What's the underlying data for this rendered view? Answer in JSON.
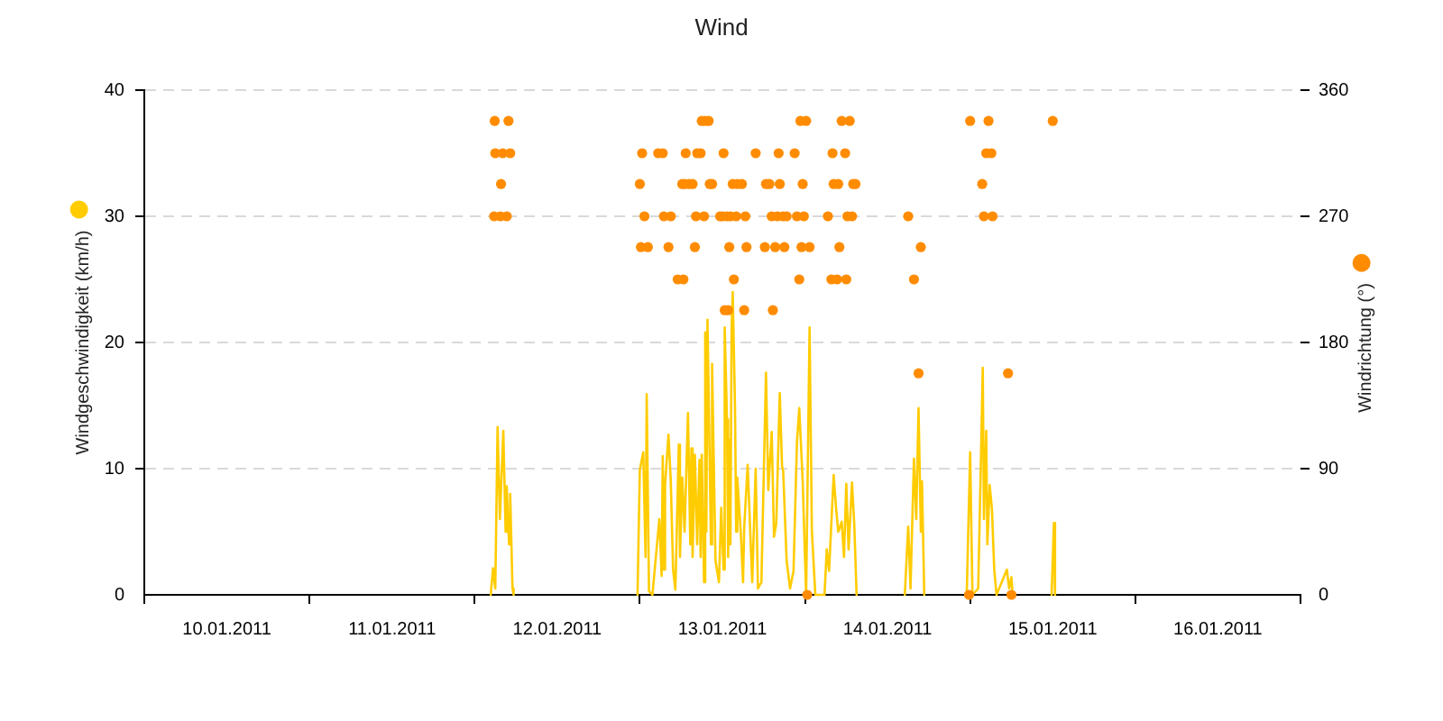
{
  "chart_data": {
    "type": "line",
    "title": "Wind",
    "ylabel": "Windgeschwindigkeit (km/h)",
    "y2label": "Windrichtung (°)",
    "xlim": [
      "2011-01-10",
      "2011-01-17"
    ],
    "xticks": [
      {
        "value": "2011-01-10",
        "label": null
      },
      {
        "value": "2011-01-10T12:00",
        "label": "10.01.2011"
      },
      {
        "value": "2011-01-11",
        "label": null
      },
      {
        "value": "2011-01-11T12:00",
        "label": "11.01.2011"
      },
      {
        "value": "2011-01-12",
        "label": null
      },
      {
        "value": "2011-01-12T12:00",
        "label": "12.01.2011"
      },
      {
        "value": "2011-01-13",
        "label": null
      },
      {
        "value": "2011-01-13T12:00",
        "label": "13.01.2011"
      },
      {
        "value": "2011-01-14",
        "label": null
      },
      {
        "value": "2011-01-14T12:00",
        "label": "14.01.2011"
      },
      {
        "value": "2011-01-15",
        "label": null
      },
      {
        "value": "2011-01-15T12:00",
        "label": "15.01.2011"
      },
      {
        "value": "2011-01-16",
        "label": null
      },
      {
        "value": "2011-01-16T12:00",
        "label": "16.01.2011"
      },
      {
        "value": "2011-01-17",
        "label": null
      }
    ],
    "ylim": [
      0,
      40
    ],
    "yticks": [
      0,
      10,
      20,
      30,
      40
    ],
    "y2lim": [
      0,
      360
    ],
    "y2ticks": [
      0,
      90,
      180,
      270,
      360
    ],
    "grid": "y",
    "series": [
      {
        "color": "#ffcc00",
        "marker": "none",
        "x": [
          "2011-01-12T02:20",
          "2011-01-12T02:40",
          "2011-01-12T03:00",
          "2011-01-12T03:20",
          "2011-01-12T03:40",
          "2011-01-12T04:10",
          "2011-01-12T04:30",
          "2011-01-12T04:40",
          "2011-01-12T05:00",
          "2011-01-12T05:10",
          "2011-01-12T05:30",
          "2011-01-12T05:40",
          "2011-01-12T12:00",
          "2011-01-12T23:40",
          "2011-01-13T00:00",
          "2011-01-13T00:30",
          "2011-01-13T00:50",
          "2011-01-13T01:00",
          "2011-01-13T01:20",
          "2011-01-13T01:50",
          "2011-01-13T02:50",
          "2011-01-13T03:10",
          "2011-01-13T03:20",
          "2011-01-13T03:30",
          "2011-01-13T03:40",
          "2011-01-13T04:10",
          "2011-01-13T04:30",
          "2011-01-13T04:50",
          "2011-01-13T05:10",
          "2011-01-13T05:40",
          "2011-01-13T05:50",
          "2011-01-13T06:10",
          "2011-01-13T06:30",
          "2011-01-13T07:00",
          "2011-01-13T07:20",
          "2011-01-13T07:30",
          "2011-01-13T07:40",
          "2011-01-13T08:00",
          "2011-01-13T08:20",
          "2011-01-13T08:40",
          "2011-01-13T08:50",
          "2011-01-13T09:00",
          "2011-01-13T09:20",
          "2011-01-13T09:30",
          "2011-01-13T09:40",
          "2011-01-13T09:50",
          "2011-01-13T10:10",
          "2011-01-13T10:20",
          "2011-01-13T10:30",
          "2011-01-13T11:00",
          "2011-01-13T11:30",
          "2011-01-13T11:50",
          "2011-01-13T12:10",
          "2011-01-13T12:20",
          "2011-01-13T12:40",
          "2011-01-13T12:50",
          "2011-01-13T13:00",
          "2011-01-13T13:10",
          "2011-01-13T13:20",
          "2011-01-13T13:30",
          "2011-01-13T13:50",
          "2011-01-13T14:00",
          "2011-01-13T14:10",
          "2011-01-13T14:40",
          "2011-01-13T15:00",
          "2011-01-13T15:10",
          "2011-01-13T15:40",
          "2011-01-13T16:20",
          "2011-01-13T16:50",
          "2011-01-13T17:10",
          "2011-01-13T17:40",
          "2011-01-13T18:20",
          "2011-01-13T18:40",
          "2011-01-13T19:10",
          "2011-01-13T19:30",
          "2011-01-13T19:50",
          "2011-01-13T20:20",
          "2011-01-13T20:40",
          "2011-01-13T20:50",
          "2011-01-13T21:20",
          "2011-01-13T21:50",
          "2011-01-13T22:20",
          "2011-01-13T22:50",
          "2011-01-13T23:10",
          "2011-01-13T23:40",
          "2011-01-14T00:10",
          "2011-01-14T00:40",
          "2011-01-14T01:00",
          "2011-01-14T01:30",
          "2011-01-14T02:50",
          "2011-01-14T03:10",
          "2011-01-14T03:30",
          "2011-01-14T04:10",
          "2011-01-14T04:30",
          "2011-01-14T04:50",
          "2011-01-14T05:20",
          "2011-01-14T05:40",
          "2011-01-14T06:00",
          "2011-01-14T06:20",
          "2011-01-14T06:50",
          "2011-01-14T07:10",
          "2011-01-14T07:30",
          "2011-01-14T11:00",
          "2011-01-14T14:30",
          "2011-01-14T15:00",
          "2011-01-14T15:20",
          "2011-01-14T15:50",
          "2011-01-14T16:10",
          "2011-01-14T16:30",
          "2011-01-14T16:50",
          "2011-01-14T17:00",
          "2011-01-14T17:20",
          "2011-01-14T20:00",
          "2011-01-14T23:30",
          "2011-01-15T00:00",
          "2011-01-15T00:20",
          "2011-01-15T01:10",
          "2011-01-15T01:30",
          "2011-01-15T01:50",
          "2011-01-15T02:00",
          "2011-01-15T02:20",
          "2011-01-15T02:30",
          "2011-01-15T02:50",
          "2011-01-15T03:10",
          "2011-01-15T03:30",
          "2011-01-15T03:50",
          "2011-01-15T05:20",
          "2011-01-15T05:40",
          "2011-01-15T06:00",
          "2011-01-15T06:10",
          "2011-01-15T09:00",
          "2011-01-15T11:50",
          "2011-01-15T12:10",
          "2011-01-15T12:20"
        ],
        "values": [
          0,
          2.1,
          0.5,
          13.3,
          6,
          13,
          5,
          8.6,
          4,
          8,
          0.5,
          0,
          null,
          0,
          9.9,
          11.3,
          3,
          15.9,
          0.3,
          0,
          6,
          1.5,
          11,
          2,
          8.7,
          12.7,
          9,
          2,
          0.4,
          11.9,
          3,
          9.3,
          5,
          14.4,
          4,
          11.6,
          3,
          11.1,
          4,
          10.7,
          3,
          11.1,
          1,
          20.8,
          5,
          21.8,
          10.2,
          4,
          18.3,
          2.7,
          1,
          6.9,
          2,
          21.2,
          13.9,
          3,
          12.3,
          4,
          21.1,
          24,
          14.8,
          5,
          9.3,
          5,
          1,
          5.3,
          10.3,
          1,
          10,
          0.5,
          1,
          17.6,
          8.3,
          12.9,
          4.6,
          5.7,
          16,
          10.2,
          9.8,
          2.7,
          0.5,
          1.9,
          12.1,
          14.8,
          9,
          0,
          21.2,
          5.1,
          0,
          0,
          3.6,
          1.9,
          9.5,
          7,
          5,
          5.8,
          3,
          8.8,
          3.6,
          8.9,
          5.5,
          0,
          null,
          0,
          5.4,
          0.5,
          10.8,
          6,
          14.8,
          5,
          9,
          0,
          null,
          0,
          11.3,
          0,
          0.5,
          9,
          18,
          6,
          13,
          4,
          8.7,
          6.8,
          2,
          0,
          2,
          0.5,
          1.4,
          0,
          null,
          0,
          5.7,
          0
        ]
      },
      {
        "type": "scatter",
        "axis": "y2",
        "color": "#ff8c00",
        "marker": "circle",
        "x": [
          "2011-01-12T02:50",
          "2011-01-12T02:55",
          "2011-01-12T03:00",
          "2011-01-12T03:45",
          "2011-01-12T03:50",
          "2011-01-12T04:05",
          "2011-01-12T04:40",
          "2011-01-12T04:55",
          "2011-01-12T05:10",
          "2011-01-13T00:00",
          "2011-01-13T00:10",
          "2011-01-13T00:20",
          "2011-01-13T00:40",
          "2011-01-13T01:10",
          "2011-01-13T02:40",
          "2011-01-13T03:20",
          "2011-01-13T03:30",
          "2011-01-13T04:10",
          "2011-01-13T04:30",
          "2011-01-13T05:30",
          "2011-01-13T06:10",
          "2011-01-13T06:20",
          "2011-01-13T06:30",
          "2011-01-13T06:40",
          "2011-01-13T07:10",
          "2011-01-13T07:40",
          "2011-01-13T08:00",
          "2011-01-13T08:10",
          "2011-01-13T08:20",
          "2011-01-13T08:50",
          "2011-01-13T09:00",
          "2011-01-13T09:20",
          "2011-01-13T09:30",
          "2011-01-13T10:00",
          "2011-01-13T10:10",
          "2011-01-13T10:30",
          "2011-01-13T11:40",
          "2011-01-13T12:00",
          "2011-01-13T12:10",
          "2011-01-13T12:20",
          "2011-01-13T12:40",
          "2011-01-13T12:50",
          "2011-01-13T13:00",
          "2011-01-13T13:10",
          "2011-01-13T13:30",
          "2011-01-13T13:40",
          "2011-01-13T14:00",
          "2011-01-13T14:10",
          "2011-01-13T14:50",
          "2011-01-13T15:10",
          "2011-01-13T15:20",
          "2011-01-13T15:30",
          "2011-01-13T16:50",
          "2011-01-13T18:10",
          "2011-01-13T18:20",
          "2011-01-13T18:50",
          "2011-01-13T19:10",
          "2011-01-13T19:20",
          "2011-01-13T19:40",
          "2011-01-13T20:00",
          "2011-01-13T20:10",
          "2011-01-13T20:20",
          "2011-01-13T20:50",
          "2011-01-13T21:00",
          "2011-01-13T21:20",
          "2011-01-13T22:30",
          "2011-01-13T22:50",
          "2011-01-13T23:10",
          "2011-01-13T23:20",
          "2011-01-13T23:30",
          "2011-01-13T23:40",
          "2011-01-13T23:50",
          "2011-01-14T00:10",
          "2011-01-14T00:20",
          "2011-01-14T00:40",
          "2011-01-14T03:20",
          "2011-01-14T03:50",
          "2011-01-14T04:00",
          "2011-01-14T04:10",
          "2011-01-14T04:40",
          "2011-01-14T04:50",
          "2011-01-14T05:00",
          "2011-01-14T05:20",
          "2011-01-14T05:50",
          "2011-01-14T06:00",
          "2011-01-14T06:10",
          "2011-01-14T06:30",
          "2011-01-14T06:50",
          "2011-01-14T07:00",
          "2011-01-14T07:20",
          "2011-01-14T15:00",
          "2011-01-14T15:50",
          "2011-01-14T16:30",
          "2011-01-14T16:50",
          "2011-01-14T23:50",
          "2011-01-15T00:00",
          "2011-01-15T01:45",
          "2011-01-15T02:00",
          "2011-01-15T02:20",
          "2011-01-15T02:40",
          "2011-01-15T03:05",
          "2011-01-15T03:15",
          "2011-01-15T05:30",
          "2011-01-15T06:00",
          "2011-01-15T12:00"
        ],
        "values": [
          270,
          338,
          315,
          270,
          293,
          315,
          270,
          338,
          315,
          293,
          248,
          315,
          270,
          248,
          315,
          315,
          270,
          248,
          270,
          225,
          293,
          225,
          293,
          315,
          293,
          293,
          248,
          270,
          315,
          315,
          338,
          270,
          338,
          338,
          293,
          293,
          270,
          270,
          315,
          203,
          270,
          203,
          248,
          270,
          293,
          225,
          270,
          293,
          293,
          203,
          270,
          248,
          315,
          248,
          293,
          293,
          270,
          203,
          248,
          270,
          315,
          293,
          270,
          248,
          270,
          315,
          270,
          225,
          338,
          248,
          293,
          270,
          338,
          0,
          248,
          270,
          225,
          315,
          293,
          225,
          293,
          248,
          338,
          315,
          225,
          270,
          338,
          270,
          293,
          293,
          270,
          225,
          158,
          248,
          0,
          338,
          293,
          270,
          315,
          338,
          315,
          270,
          158,
          0,
          338
        ]
      }
    ]
  }
}
